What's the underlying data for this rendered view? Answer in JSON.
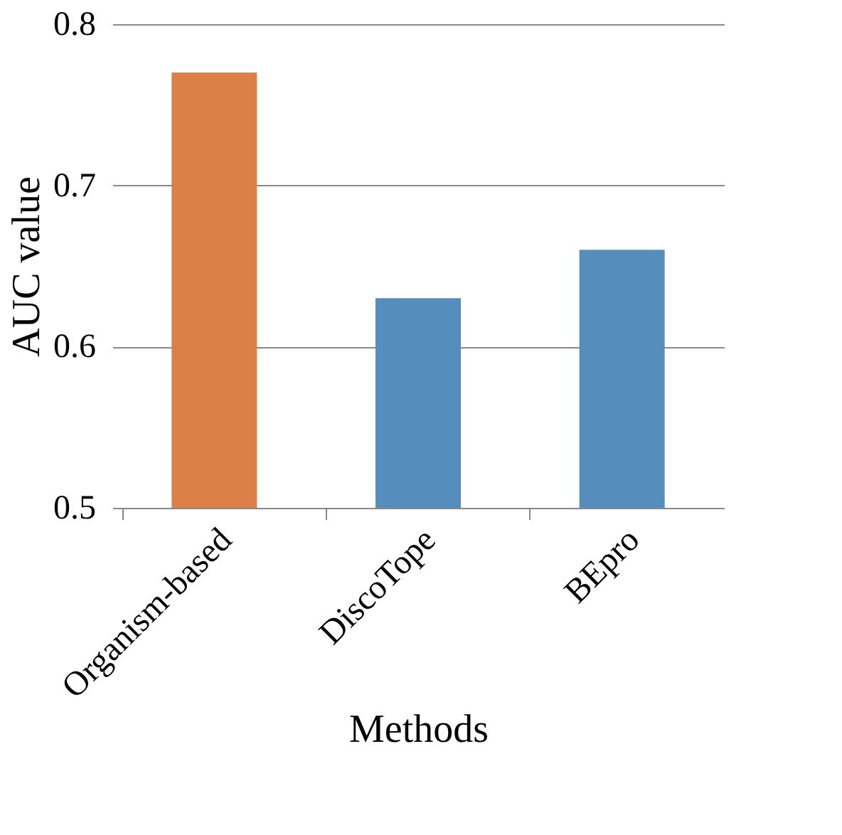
{
  "chart_data": {
    "type": "bar",
    "xlabel": "Methods",
    "ylabel": "AUC value",
    "categories": [
      "Organism-based",
      "DiscoTope",
      "BEpro"
    ],
    "values": [
      0.77,
      0.63,
      0.66
    ],
    "colors": [
      "#dd8047",
      "#558dbd",
      "#558dbd"
    ],
    "ylim": [
      0.5,
      0.8
    ],
    "yticks": [
      0.5,
      0.6,
      0.7,
      0.8
    ],
    "grid": "y"
  }
}
